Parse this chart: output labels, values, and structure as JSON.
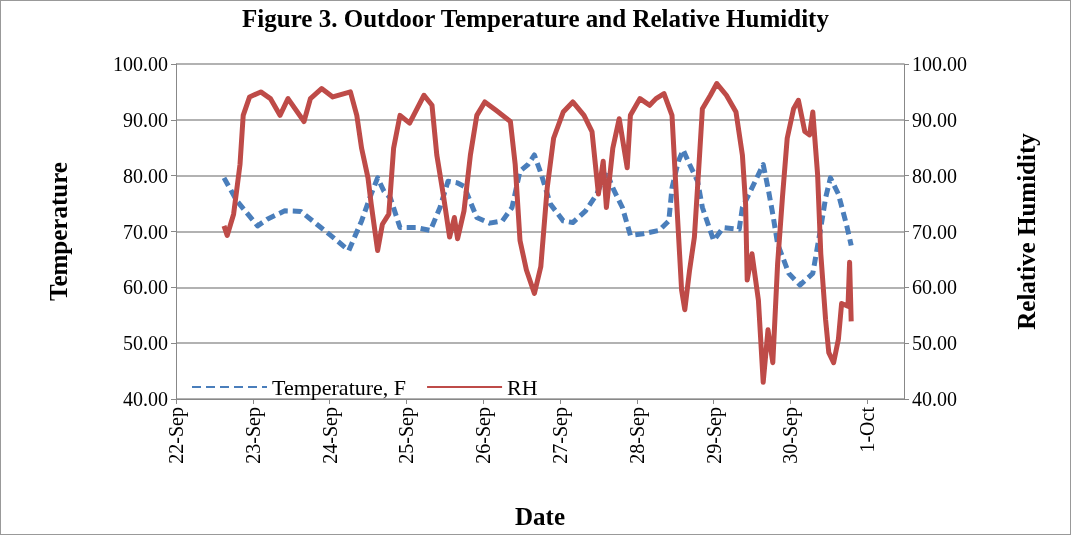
{
  "chart_data": {
    "type": "line",
    "title": "Figure 3. Outdoor Temperature and Relative Humidity",
    "xlabel": "Date",
    "ylabel": "Temperature",
    "y2label": "Relative Humidity",
    "xlim": [
      "--09-22",
      "--10-01T11:30"
    ],
    "xticks": [
      {
        "value": "--09-22",
        "label": "22-Sep"
      },
      {
        "value": "--09-23",
        "label": "23-Sep"
      },
      {
        "value": "--09-24",
        "label": "24-Sep"
      },
      {
        "value": "--09-25",
        "label": "25-Sep"
      },
      {
        "value": "--09-26",
        "label": "26-Sep"
      },
      {
        "value": "--09-27",
        "label": "27-Sep"
      },
      {
        "value": "--09-28",
        "label": "28-Sep"
      },
      {
        "value": "--09-29",
        "label": "29-Sep"
      },
      {
        "value": "--09-30",
        "label": "30-Sep"
      },
      {
        "value": "--10-01",
        "label": "1-Oct"
      }
    ],
    "ylim": [
      40,
      100
    ],
    "yticks": [
      {
        "value": 40,
        "label": "40.00"
      },
      {
        "value": 50,
        "label": "50.00"
      },
      {
        "value": 60,
        "label": "60.00"
      },
      {
        "value": 70,
        "label": "70.00"
      },
      {
        "value": 80,
        "label": "80.00"
      },
      {
        "value": 90,
        "label": "90.00"
      },
      {
        "value": 100,
        "label": "100.00"
      }
    ],
    "y2lim": [
      40,
      100
    ],
    "y2ticks": [
      {
        "value": 40,
        "label": "40.00"
      },
      {
        "value": 50,
        "label": "50.00"
      },
      {
        "value": 60,
        "label": "60.00"
      },
      {
        "value": 70,
        "label": "70.00"
      },
      {
        "value": 80,
        "label": "80.00"
      },
      {
        "value": 90,
        "label": "90.00"
      },
      {
        "value": 100,
        "label": "100.00"
      }
    ],
    "grid": "y",
    "legend": "bottom left",
    "marker": "none",
    "series": [
      {
        "name": "Temperature, F",
        "color": "#4a7ebb",
        "line_style": "dashed",
        "x": [
          "--09-22T15:00",
          "--09-22T19:00",
          "--09-23T01:30",
          "--09-23T04:30",
          "--09-23T10:00",
          "--09-23T15:00",
          "--09-23T20:00",
          "--09-24T01:00",
          "--09-24T06:00",
          "--09-24T10:00",
          "--09-24T13:00",
          "--09-24T15:00",
          "--09-24T17:00",
          "--09-24T19:00",
          "--09-24T22:00",
          "--09-25T03:00",
          "--09-25T07:30",
          "--09-25T10:30",
          "--09-25T13:00",
          "--09-25T16:00",
          "--09-25T18:00",
          "--09-25T22:00",
          "--09-26T02:00",
          "--09-26T06:00",
          "--09-26T09:00",
          "--09-26T11:30",
          "--09-26T14:00",
          "--09-26T16:00",
          "--09-26T18:00",
          "--09-26T21:00",
          "--09-27T01:00",
          "--09-27T04:00",
          "--09-27T08:00",
          "--09-27T11:30",
          "--09-27T14:30",
          "--09-27T16:30",
          "--09-27T19:30",
          "--09-27T22:00",
          "--09-28T02:00",
          "--09-28T07:00",
          "--09-28T10:00",
          "--09-28T11:00",
          "--09-28T13:00",
          "--09-28T14:30",
          "--09-28T16:30",
          "--09-28T19:00",
          "--09-28T20:30",
          "--09-29T00:00",
          "--09-29T03:00",
          "--09-29T08:00",
          "--09-29T09:00",
          "--09-29T12:00",
          "--09-29T15:30",
          "--09-29T17:00",
          "--09-29T18:30",
          "--09-29T20:00",
          "--09-29T23:30",
          "--09-30T03:00",
          "--09-30T07:00",
          "--09-30T09:30",
          "--09-30T11:00",
          "--09-30T12:30",
          "--09-30T15:00",
          "--09-30T17:30",
          "--09-30T19:00"
        ],
        "values": [
          79.6,
          75.5,
          71.0,
          72.2,
          73.7,
          73.6,
          71.3,
          69.0,
          66.6,
          71.9,
          76.7,
          79.6,
          77.2,
          76.0,
          70.7,
          70.7,
          70.2,
          74.3,
          79.0,
          78.7,
          78.1,
          72.5,
          71.5,
          71.9,
          74.3,
          80.8,
          82.0,
          83.7,
          80.5,
          74.9,
          71.9,
          71.6,
          73.7,
          76.7,
          80.8,
          77.8,
          74.3,
          69.3,
          69.6,
          70.2,
          71.9,
          77.8,
          82.6,
          84.6,
          82.0,
          79.0,
          74.3,
          68.4,
          70.7,
          70.4,
          74.3,
          77.8,
          82.0,
          77.8,
          73.1,
          67.8,
          62.5,
          60.4,
          62.5,
          70.7,
          76.0,
          79.6,
          76.7,
          71.3,
          67.5
        ]
      },
      {
        "name": "RH",
        "color": "#be4b48",
        "line_style": "solid",
        "axis": "y2",
        "x": [
          "--09-22T15:00",
          "--09-22T16:00",
          "--09-22T18:00",
          "--09-22T20:00",
          "--09-22T21:00",
          "--09-22T23:00",
          "--09-23T02:30",
          "--09-23T05:30",
          "--09-23T08:30",
          "--09-23T11:00",
          "--09-23T16:00",
          "--09-23T18:00",
          "--09-23T21:30",
          "--09-24T01:00",
          "--09-24T06:30",
          "--09-24T08:30",
          "--09-24T10:00",
          "--09-24T12:00",
          "--09-24T13:00",
          "--09-24T15:00",
          "--09-24T16:30",
          "--09-24T18:30",
          "--09-24T20:00",
          "--09-24T22:00",
          "--09-25T01:00",
          "--09-25T05:30",
          "--09-25T08:00",
          "--09-25T09:30",
          "--09-25T11:30",
          "--09-25T13:30",
          "--09-25T15:00",
          "--09-25T16:00",
          "--09-25T18:00",
          "--09-25T20:00",
          "--09-25T22:00",
          "--09-26T00:30",
          "--09-26T04:00",
          "--09-26T08:30",
          "--09-26T10:00",
          "--09-26T11:30",
          "--09-26T13:30",
          "--09-26T16:00",
          "--09-26T18:00",
          "--09-26T20:00",
          "--09-26T22:00",
          "--09-27T01:00",
          "--09-27T04:00",
          "--09-27T07:30",
          "--09-27T10:00",
          "--09-27T12:00",
          "--09-27T13:30",
          "--09-27T14:30",
          "--09-27T16:30",
          "--09-27T18:30",
          "--09-27T21:00",
          "--09-27T22:00",
          "--09-28T01:00",
          "--09-28T04:00",
          "--09-28T06:00",
          "--09-28T08:30",
          "--09-28T11:00",
          "--09-28T12:30",
          "--09-28T14:00",
          "--09-28T15:00",
          "--09-28T16:30",
          "--09-28T18:00",
          "--09-28T19:30",
          "--09-28T20:30",
          "--09-28T23:00",
          "--09-29T01:00",
          "--09-29T04:00",
          "--09-29T07:00",
          "--09-29T09:00",
          "--09-29T10:00",
          "--09-29T10:30",
          "--09-29T12:00",
          "--09-29T14:00",
          "--09-29T15:30",
          "--09-29T17:00",
          "--09-29T18:30",
          "--09-29T20:00",
          "--09-29T21:30",
          "--09-29T23:00",
          "--09-30T01:00",
          "--09-30T02:30",
          "--09-30T04:30",
          "--09-30T06:00",
          "--09-30T07:00",
          "--09-30T08:30",
          "--09-30T09:30",
          "--09-30T11:00",
          "--09-30T12:00",
          "--09-30T13:30",
          "--09-30T15:00",
          "--09-30T16:00",
          "--09-30T18:00",
          "--09-30T18:30",
          "--09-30T19:00"
        ],
        "values": [
          71.0,
          69.3,
          73.1,
          82.0,
          90.8,
          94.1,
          95.0,
          93.8,
          90.8,
          93.8,
          89.7,
          93.8,
          95.6,
          94.1,
          95.0,
          90.8,
          84.9,
          79.6,
          74.9,
          66.6,
          71.3,
          73.1,
          84.9,
          90.8,
          89.4,
          94.4,
          92.6,
          83.7,
          76.7,
          69.0,
          72.5,
          68.7,
          73.7,
          83.7,
          90.8,
          93.2,
          91.7,
          89.7,
          82.0,
          68.4,
          63.1,
          58.9,
          63.7,
          77.8,
          86.7,
          91.4,
          93.2,
          90.8,
          87.9,
          76.7,
          82.6,
          74.3,
          84.9,
          90.2,
          81.4,
          90.8,
          93.8,
          92.6,
          93.8,
          94.7,
          90.8,
          74.9,
          59.5,
          56.0,
          63.1,
          69.0,
          82.6,
          92.0,
          94.4,
          96.5,
          94.4,
          91.4,
          83.7,
          74.9,
          61.3,
          66.0,
          57.7,
          43.0,
          52.4,
          46.5,
          64.2,
          76.0,
          86.7,
          92.0,
          93.5,
          87.9,
          87.3,
          91.4,
          80.2,
          66.0,
          54.2,
          48.3,
          46.5,
          50.7,
          57.1,
          56.6,
          64.5,
          53.9
        ]
      }
    ]
  }
}
